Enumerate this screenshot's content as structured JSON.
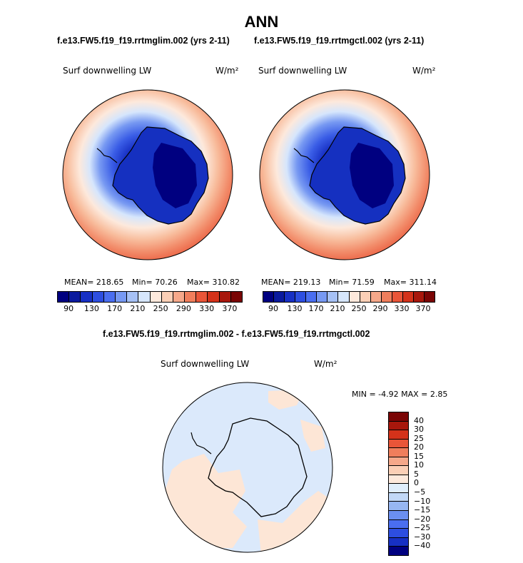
{
  "title": "ANN",
  "panels": [
    {
      "case_title": "f.e13.FW5.f19_f19.rrtmglim.002 (yrs 2-11)",
      "variable": "Surf downwelling LW",
      "units": "W/m²",
      "mean_label": "MEAN= 218.65",
      "min_label": "Min=  70.26",
      "max_label": "Max= 310.82"
    },
    {
      "case_title": "f.e13.FW5.f19_f19.rrtmgctl.002 (yrs 2-11)",
      "variable": "Surf downwelling LW",
      "units": "W/m²",
      "mean_label": "MEAN= 219.13",
      "min_label": "Min=  71.59",
      "max_label": "Max= 311.14"
    }
  ],
  "abs_colorbar": {
    "colors": [
      "#000080",
      "#0a1a9e",
      "#1730c4",
      "#2d4ee0",
      "#4a6ef0",
      "#7799f2",
      "#a6c1f5",
      "#d6e6fc",
      "#fde9dc",
      "#fbcfb6",
      "#f6a88a",
      "#f07e5c",
      "#e95538",
      "#d4321a",
      "#a8170c",
      "#7a0505"
    ],
    "tick_labels": [
      "90",
      "130",
      "170",
      "210",
      "250",
      "290",
      "330",
      "370"
    ]
  },
  "diff": {
    "case_title": "f.e13.FW5.f19_f19.rrtmglim.002 - f.e13.FW5.f19_f19.rrtmgctl.002",
    "variable": "Surf downwelling LW",
    "units": "W/m²",
    "minmax_label": "MIN = -4.92 MAX =  2.85"
  },
  "diff_colorbar": {
    "colors": [
      "#7a0505",
      "#a8170c",
      "#d4321a",
      "#e95538",
      "#f07e5c",
      "#f6a88a",
      "#fbcfb6",
      "#fde9dc",
      "#e0eefc",
      "#c2d8f7",
      "#97b7f3",
      "#6b8ff0",
      "#4a6ef0",
      "#2d4ee0",
      "#1730c4",
      "#000080"
    ],
    "tick_labels": [
      "40",
      "30",
      "25",
      "20",
      "15",
      "10",
      "5",
      "0",
      "−5",
      "−10",
      "−15",
      "−20",
      "−25",
      "−30",
      "−40"
    ]
  },
  "colors": {
    "land_outline": "#000000",
    "diff_neutral": "#dbe9fb",
    "diff_positive": "#fde6d6"
  }
}
